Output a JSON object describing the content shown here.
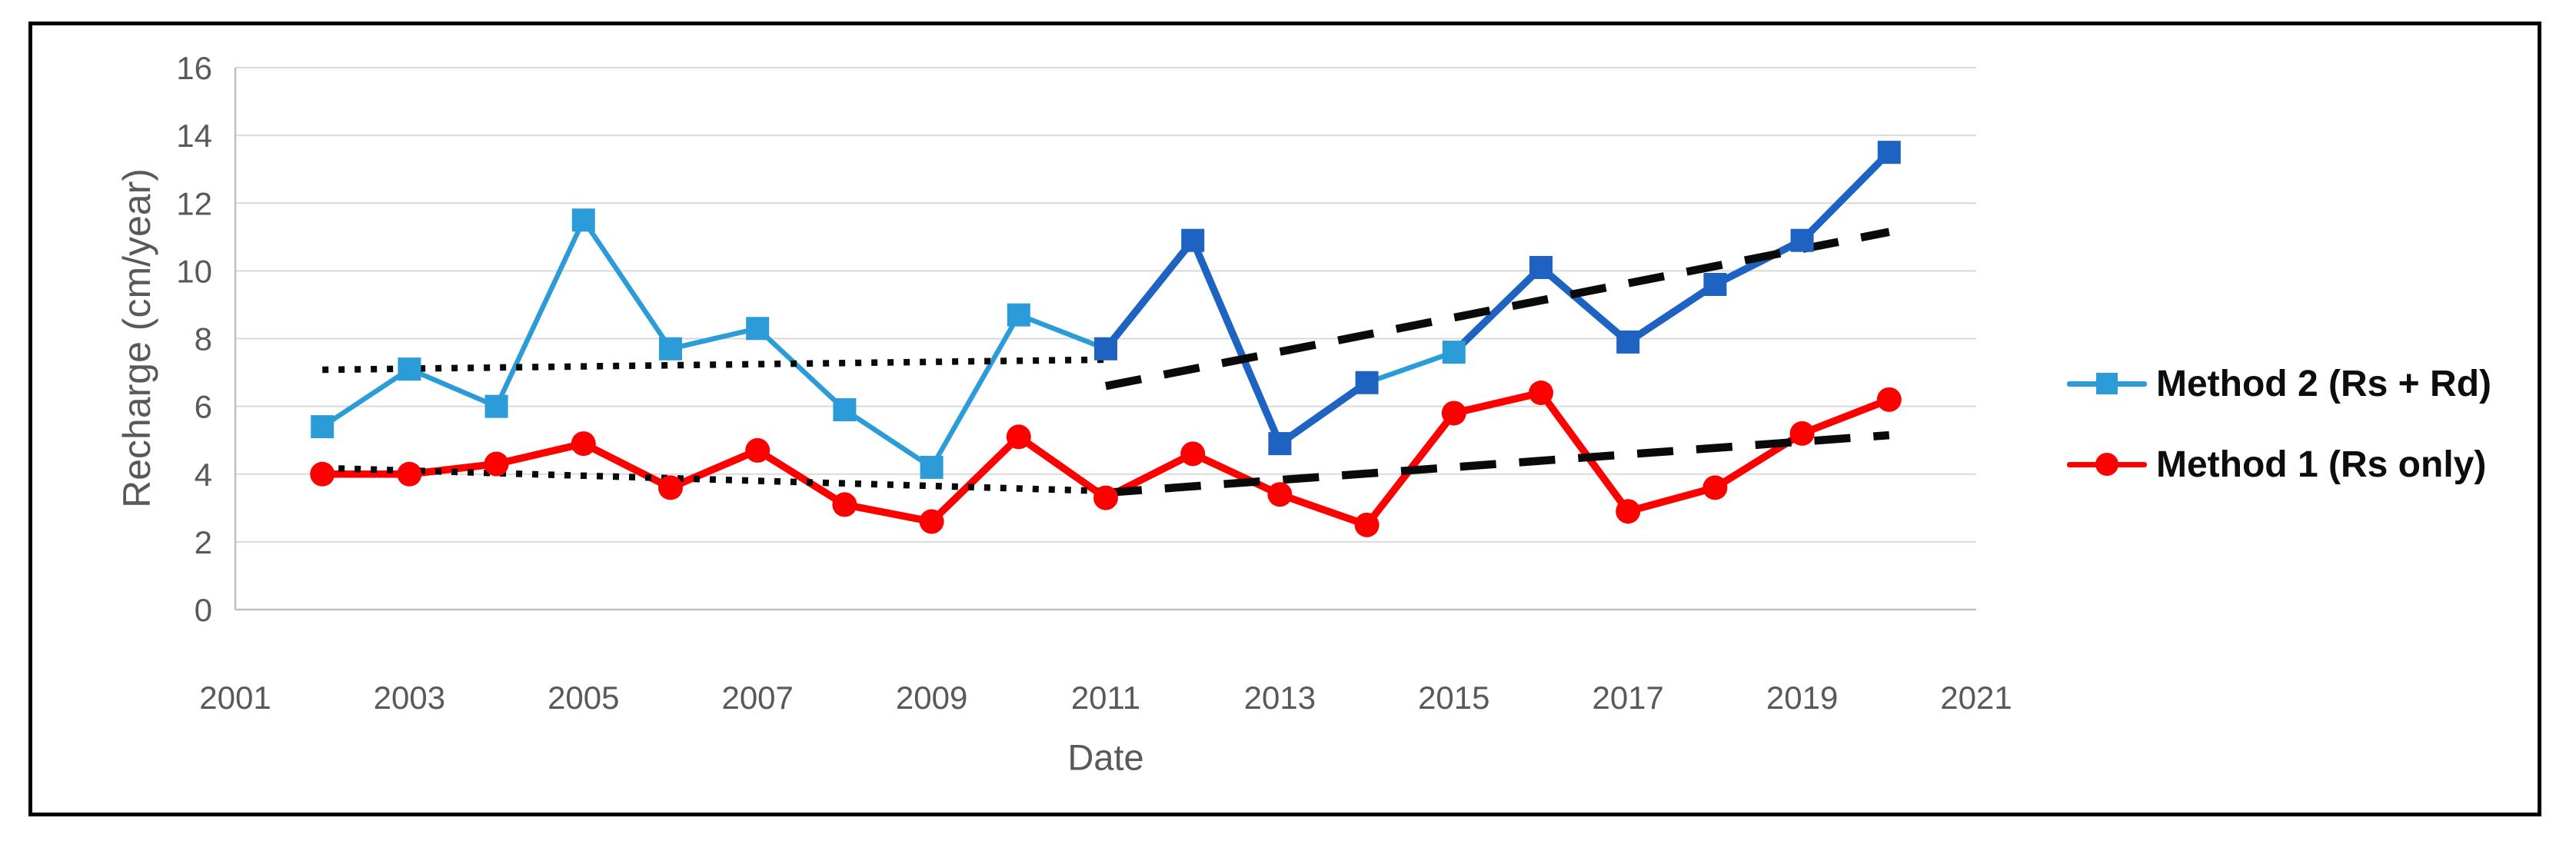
{
  "chart_data": {
    "type": "line",
    "title": "",
    "xlabel": "Date",
    "ylabel": "Recharge (cm/year)",
    "x": [
      2002,
      2003,
      2004,
      2005,
      2006,
      2007,
      2008,
      2009,
      2010,
      2011,
      2012,
      2013,
      2014,
      2015,
      2016,
      2017,
      2018,
      2019,
      2020
    ],
    "series": [
      {
        "name": "Method 2 (Rs + Rd)",
        "marker": "square",
        "values": [
          5.4,
          7.1,
          6.0,
          11.5,
          7.7,
          8.3,
          5.9,
          4.2,
          8.7,
          7.7,
          10.9,
          4.9,
          6.7,
          7.6,
          10.1,
          7.9,
          9.6,
          10.9,
          13.5
        ]
      },
      {
        "name": "Method 1 (Rs only)",
        "marker": "circle",
        "values": [
          4.0,
          4.0,
          4.3,
          4.9,
          3.6,
          4.7,
          3.1,
          2.6,
          5.1,
          3.3,
          4.6,
          3.4,
          2.5,
          5.8,
          6.4,
          2.9,
          3.6,
          5.2,
          6.2
        ]
      }
    ],
    "trendlines": [
      {
        "series": "Method 2 (Rs + Rd)",
        "period": "2002-2011",
        "style": "dotted",
        "x": [
          2002,
          2011
        ],
        "y": [
          7.08,
          7.38
        ]
      },
      {
        "series": "Method 1 (Rs only)",
        "period": "2002-2011",
        "style": "dotted",
        "x": [
          2002,
          2011
        ],
        "y": [
          4.18,
          3.5
        ]
      },
      {
        "series": "Method 2 (Rs + Rd)",
        "period": "2011-2020",
        "style": "dashed",
        "x": [
          2011,
          2020
        ],
        "y": [
          6.6,
          11.15
        ]
      },
      {
        "series": "Method 1 (Rs only)",
        "period": "2011-2020",
        "style": "dashed",
        "x": [
          2011,
          2020
        ],
        "y": [
          3.45,
          5.15
        ]
      }
    ],
    "xticks": [
      2001,
      2003,
      2005,
      2007,
      2009,
      2011,
      2013,
      2015,
      2017,
      2019,
      2021
    ],
    "yticks": [
      0,
      2,
      4,
      6,
      8,
      10,
      12,
      14,
      16
    ],
    "xlim": [
      2001,
      2021
    ],
    "ylim": [
      0,
      16
    ],
    "grid": "horizontal",
    "legend_position": "right"
  },
  "legend": {
    "items": [
      {
        "label": "Method 2 (Rs + Rd)"
      },
      {
        "label": "Method 1 (Rs only)"
      }
    ]
  },
  "axes": {
    "y_title": "Recharge (cm/year)",
    "x_title": "Date"
  },
  "colors": {
    "method2_light": "#2B9CD8",
    "method2_dark": "#1E63C2",
    "method1_red": "#FE0000",
    "trendline": "#0a0a0a",
    "gridline": "#D9D9D9",
    "axisline": "#BFBFBF",
    "axis_text": "#595959",
    "legend_text": "#0d0d0d",
    "frame_border": "#000000"
  },
  "style": {
    "method2_light_marker_years": [
      2002,
      2003,
      2004,
      2005,
      2006,
      2007,
      2008,
      2009,
      2010,
      2015
    ],
    "method2_light_segment_start_years": [
      2002,
      2003,
      2004,
      2005,
      2006,
      2007,
      2008,
      2009,
      2010,
      2014
    ]
  }
}
